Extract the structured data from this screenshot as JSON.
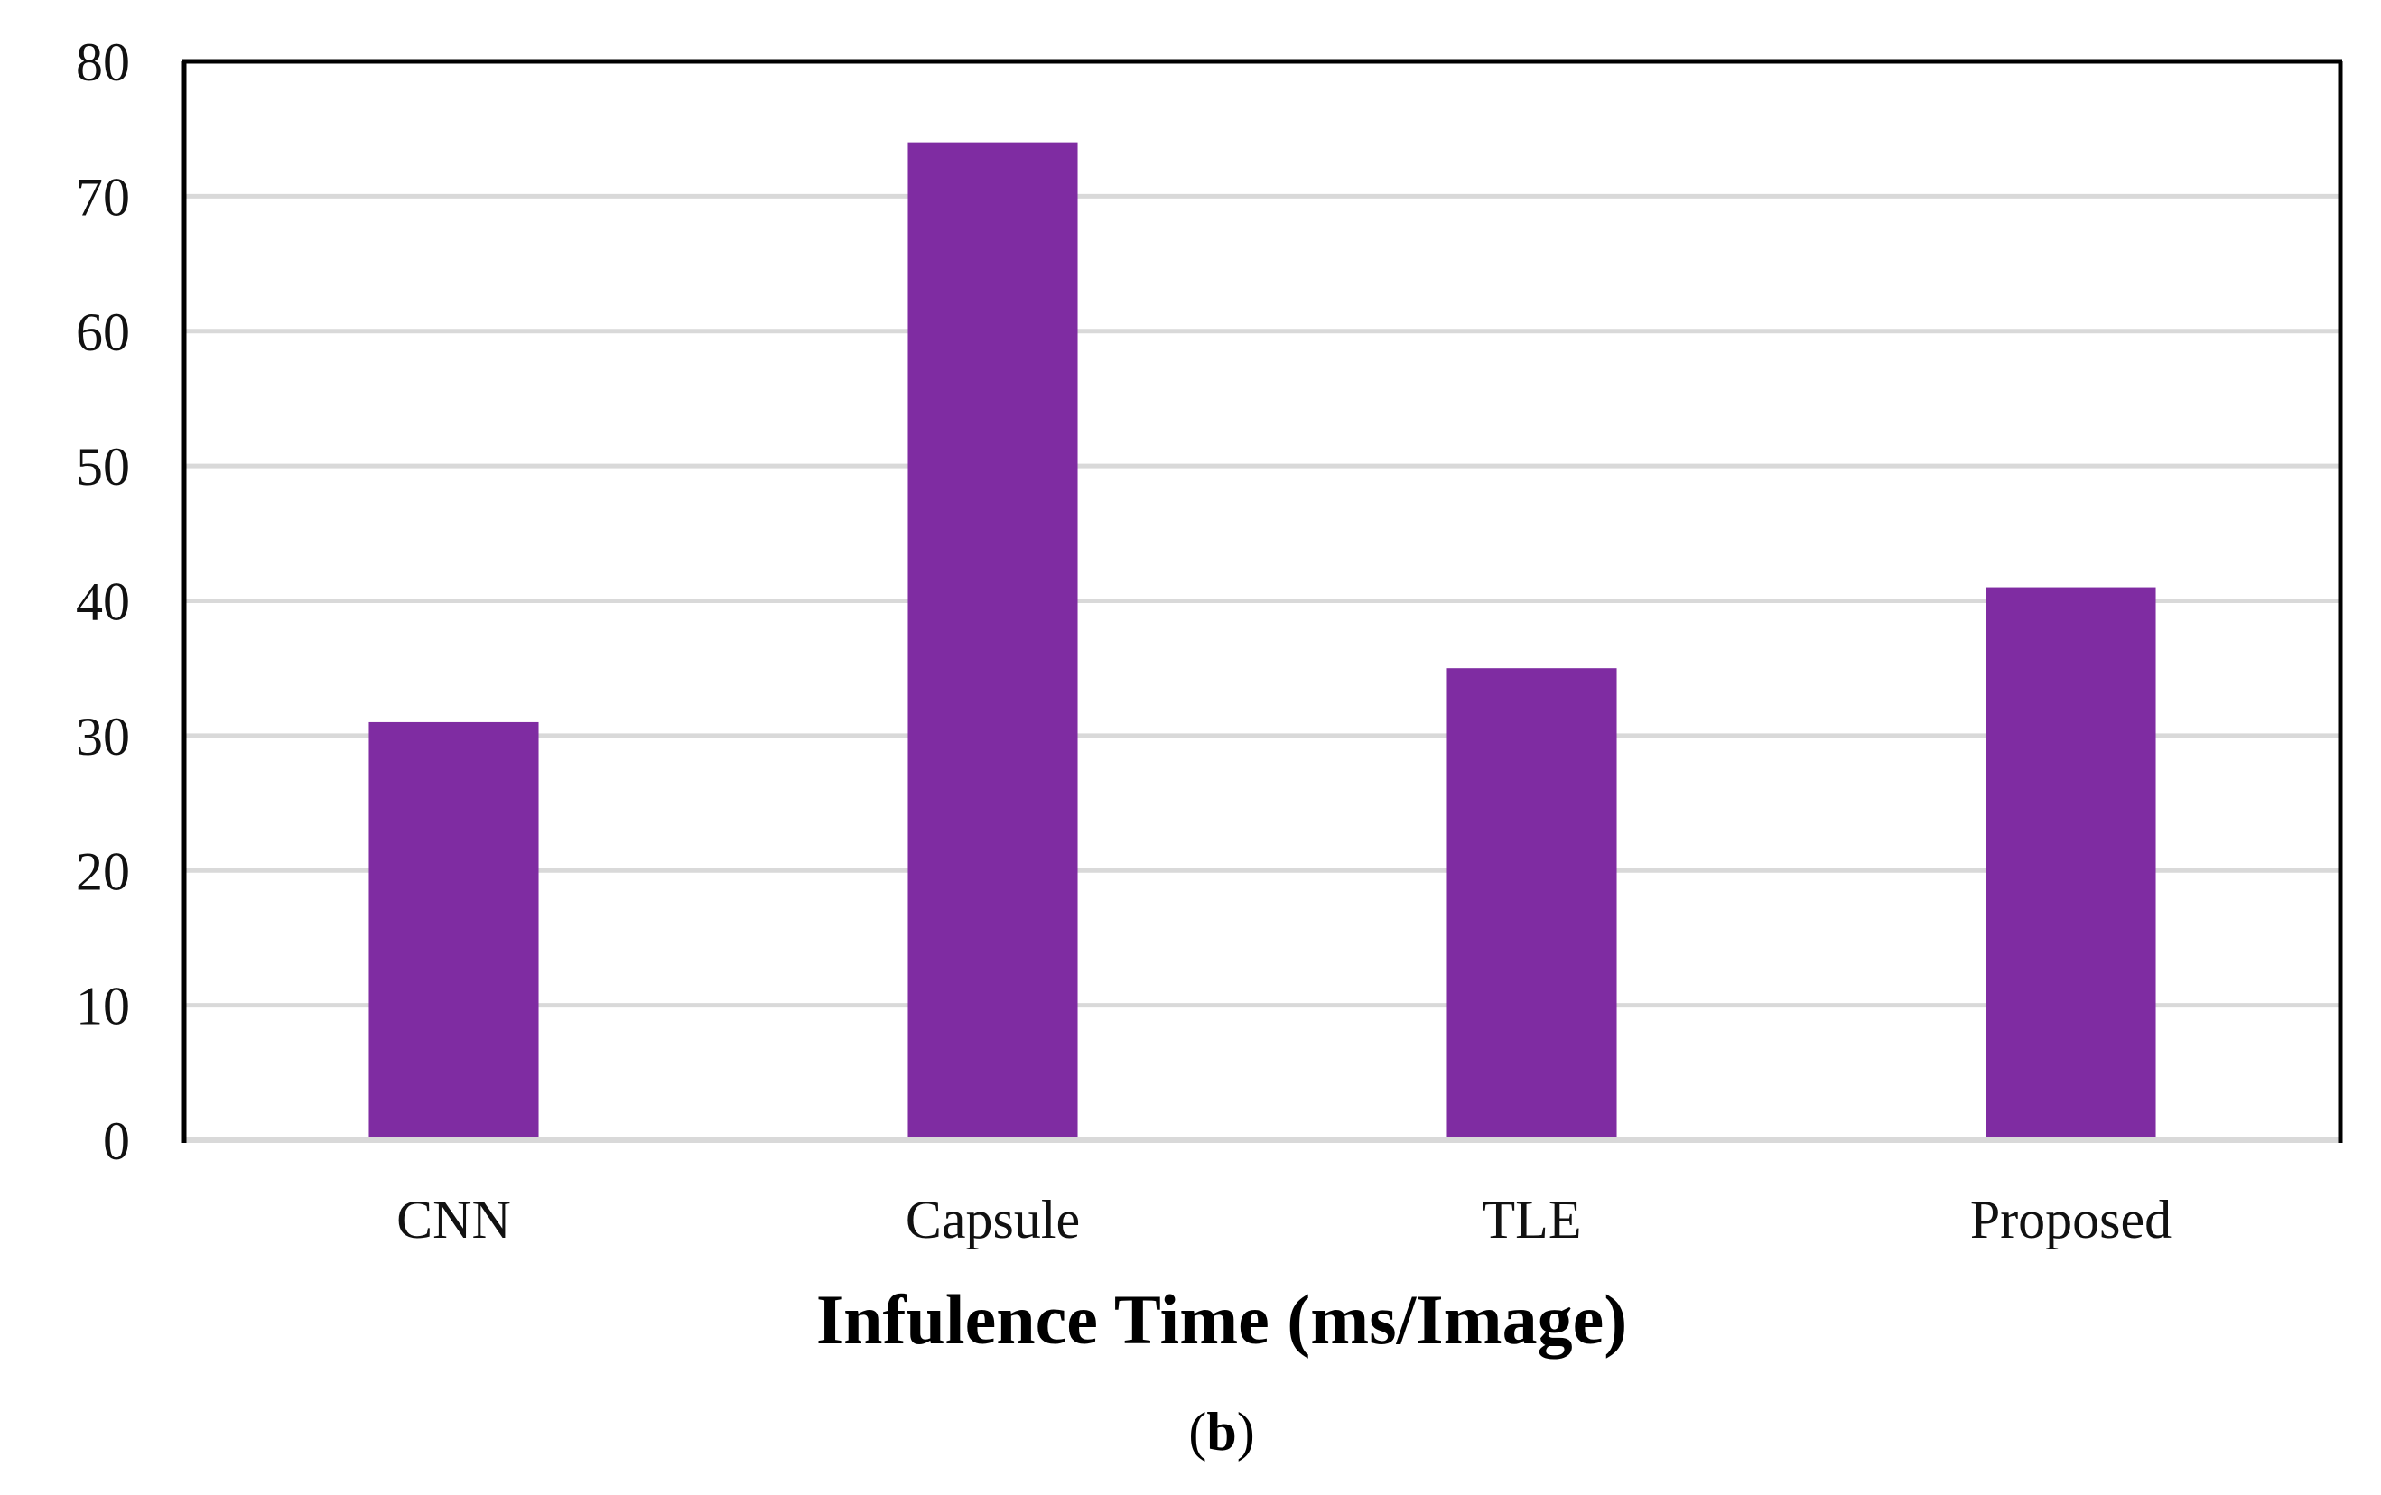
{
  "chart_data": {
    "type": "bar",
    "categories": [
      "CNN",
      "Capsule",
      "TLE",
      "Proposed"
    ],
    "values": [
      31,
      74,
      35,
      41
    ],
    "title": "",
    "xlabel": "Infulence Time (ms/Image)",
    "ylabel": "",
    "ylim": [
      0,
      80
    ],
    "yticks": [
      "0",
      "10",
      "20",
      "30",
      "40",
      "50",
      "60",
      "70",
      "80"
    ],
    "grid": true,
    "legend": "none",
    "bar_color": "#7F2CA2",
    "grid_color": "#D9D9D9",
    "axis_color": "#000000"
  },
  "caption": {
    "open": "(",
    "letter": "b",
    "close": ")"
  }
}
